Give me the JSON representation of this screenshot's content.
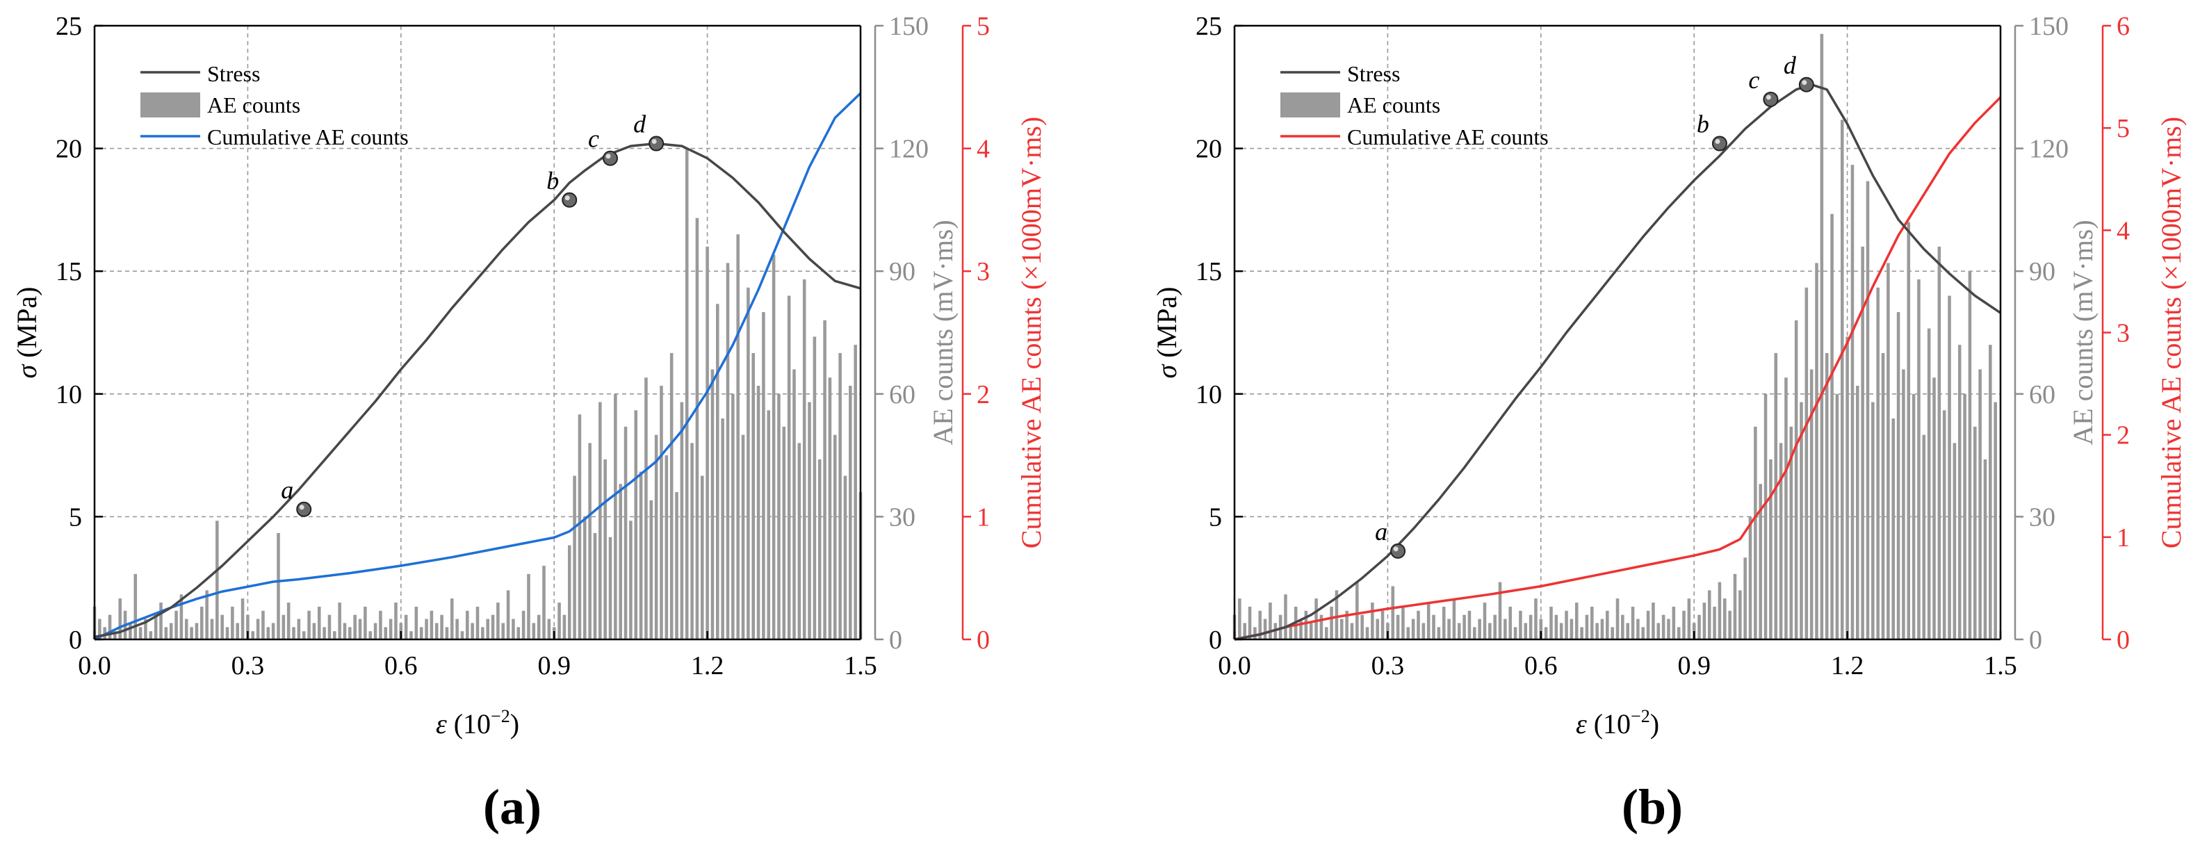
{
  "colors": {
    "stress": "#474747",
    "ae_bar": "#9a9a9a",
    "ae_axis": "#8c8c8c",
    "cum_axis": "#ee3333",
    "grid": "#9a9a9a",
    "axis": "#000000"
  },
  "chart_data": [
    {
      "panel_label": "(a)",
      "type": "line+bar",
      "xlabel_prefix": "ε",
      "xlabel_suffix": " (10",
      "xlabel_exp": "−2",
      "xlabel_close": ")",
      "ylabel_symbol": "σ",
      "ylabel_unit": " (MPa)",
      "y2label": "AE counts (mV·ms)",
      "y3label": "Cumulative AE counts (×1000mV·ms)",
      "xlim": [
        0,
        1.5
      ],
      "ylim": [
        0,
        25
      ],
      "y2lim": [
        0,
        150
      ],
      "y3lim": [
        0,
        5
      ],
      "xticks": [
        "0.0",
        "0.3",
        "0.6",
        "0.9",
        "1.2",
        "1.5"
      ],
      "yticks": [
        "0",
        "5",
        "10",
        "15",
        "20",
        "25"
      ],
      "y2ticks": [
        "0",
        "30",
        "60",
        "90",
        "120",
        "150"
      ],
      "y3ticks": [
        "0",
        "1",
        "2",
        "3",
        "4",
        "5"
      ],
      "legend": [
        "Stress",
        "AE counts",
        "Cumulative AE counts"
      ],
      "cum_color": "#1f6fd6",
      "stress": {
        "x": [
          0,
          0.05,
          0.1,
          0.15,
          0.2,
          0.25,
          0.3,
          0.35,
          0.4,
          0.45,
          0.5,
          0.55,
          0.6,
          0.65,
          0.7,
          0.75,
          0.8,
          0.85,
          0.9,
          0.93,
          0.96,
          1.0,
          1.05,
          1.1,
          1.15,
          1.2,
          1.25,
          1.3,
          1.35,
          1.4,
          1.45,
          1.5
        ],
        "y": [
          0.1,
          0.3,
          0.7,
          1.3,
          2.1,
          3.0,
          4.0,
          5.0,
          6.1,
          7.3,
          8.5,
          9.7,
          11.0,
          12.2,
          13.5,
          14.7,
          15.9,
          17.0,
          17.9,
          18.6,
          19.1,
          19.7,
          20.1,
          20.2,
          20.1,
          19.6,
          18.8,
          17.8,
          16.6,
          15.5,
          14.6,
          14.3
        ]
      },
      "cumulative": {
        "x": [
          0,
          0.05,
          0.1,
          0.15,
          0.2,
          0.25,
          0.3,
          0.35,
          0.4,
          0.5,
          0.6,
          0.7,
          0.8,
          0.9,
          0.93,
          0.96,
          1.0,
          1.05,
          1.1,
          1.15,
          1.2,
          1.25,
          1.3,
          1.35,
          1.4,
          1.45,
          1.5
        ],
        "y": [
          0,
          0.1,
          0.18,
          0.26,
          0.33,
          0.39,
          0.43,
          0.47,
          0.49,
          0.54,
          0.6,
          0.67,
          0.75,
          0.83,
          0.88,
          0.98,
          1.12,
          1.28,
          1.45,
          1.7,
          2.02,
          2.4,
          2.85,
          3.35,
          3.85,
          4.25,
          4.45
        ]
      },
      "points": [
        {
          "label": "a",
          "x": 0.41,
          "y": 5.3
        },
        {
          "label": "b",
          "x": 0.93,
          "y": 17.9
        },
        {
          "label": "c",
          "x": 1.01,
          "y": 19.6
        },
        {
          "label": "d",
          "x": 1.1,
          "y": 20.2
        }
      ],
      "ae_counts": {
        "x_start": 0,
        "x_step": 0.01,
        "values": [
          8,
          5,
          3,
          6,
          2,
          10,
          7,
          4,
          16,
          3,
          5,
          2,
          6,
          9,
          3,
          4,
          7,
          11,
          5,
          3,
          4,
          8,
          12,
          5,
          29,
          6,
          3,
          8,
          4,
          10,
          6,
          2,
          5,
          7,
          3,
          4,
          26,
          6,
          9,
          3,
          5,
          2,
          7,
          4,
          8,
          3,
          6,
          2,
          9,
          4,
          3,
          6,
          5,
          8,
          2,
          4,
          7,
          3,
          5,
          9,
          4,
          6,
          2,
          8,
          3,
          5,
          7,
          4,
          6,
          3,
          10,
          5,
          2,
          7,
          4,
          8,
          3,
          5,
          6,
          9,
          4,
          12,
          5,
          3,
          7,
          16,
          4,
          6,
          18,
          5,
          3,
          9,
          6,
          23,
          40,
          55,
          30,
          48,
          26,
          58,
          44,
          25,
          60,
          38,
          52,
          29,
          56,
          41,
          64,
          34,
          50,
          62,
          45,
          70,
          36,
          58,
          120,
          48,
          103,
          40,
          96,
          66,
          82,
          54,
          92,
          60,
          99,
          50,
          86,
          70,
          62,
          80,
          56,
          94,
          60,
          52,
          84,
          66,
          48,
          88,
          58,
          74,
          44,
          78,
          64,
          50,
          70,
          40,
          62,
          72,
          36
        ]
      }
    },
    {
      "panel_label": "(b)",
      "type": "line+bar",
      "xlabel_prefix": "ε",
      "xlabel_suffix": " (10",
      "xlabel_exp": "−2",
      "xlabel_close": ")",
      "ylabel_symbol": "σ",
      "ylabel_unit": " (MPa)",
      "y2label": "AE counts (mV·ms)",
      "y3label": "Cumulative AE counts (×1000mV·ms)",
      "xlim": [
        0,
        1.5
      ],
      "ylim": [
        0,
        25
      ],
      "y2lim": [
        0,
        150
      ],
      "y3lim": [
        0,
        6
      ],
      "xticks": [
        "0.0",
        "0.3",
        "0.6",
        "0.9",
        "1.2",
        "1.5"
      ],
      "yticks": [
        "0",
        "5",
        "10",
        "15",
        "20",
        "25"
      ],
      "y2ticks": [
        "0",
        "30",
        "60",
        "90",
        "120",
        "150"
      ],
      "y3ticks": [
        "0",
        "1",
        "2",
        "3",
        "4",
        "5",
        "6"
      ],
      "legend": [
        "Stress",
        "AE counts",
        "Cumulative AE counts"
      ],
      "cum_color": "#ee3333",
      "stress": {
        "x": [
          0,
          0.05,
          0.1,
          0.15,
          0.2,
          0.25,
          0.3,
          0.35,
          0.4,
          0.45,
          0.5,
          0.55,
          0.6,
          0.65,
          0.7,
          0.75,
          0.8,
          0.85,
          0.9,
          0.95,
          1.0,
          1.05,
          1.1,
          1.13,
          1.16,
          1.2,
          1.25,
          1.3,
          1.35,
          1.4,
          1.45,
          1.5
        ],
        "y": [
          0,
          0.2,
          0.5,
          1.0,
          1.7,
          2.5,
          3.4,
          4.5,
          5.7,
          7.0,
          8.4,
          9.8,
          11.1,
          12.5,
          13.8,
          15.1,
          16.4,
          17.6,
          18.7,
          19.7,
          20.8,
          21.7,
          22.4,
          22.6,
          22.4,
          21.0,
          18.9,
          17.1,
          15.9,
          14.9,
          14.0,
          13.3
        ]
      },
      "cumulative": {
        "x": [
          0,
          0.05,
          0.1,
          0.2,
          0.3,
          0.4,
          0.5,
          0.6,
          0.7,
          0.8,
          0.9,
          0.95,
          0.99,
          1.02,
          1.05,
          1.08,
          1.1,
          1.15,
          1.2,
          1.25,
          1.3,
          1.35,
          1.4,
          1.45,
          1.5
        ],
        "y": [
          0,
          0.05,
          0.12,
          0.22,
          0.3,
          0.37,
          0.44,
          0.52,
          0.62,
          0.72,
          0.82,
          0.88,
          0.98,
          1.2,
          1.4,
          1.65,
          1.9,
          2.4,
          2.9,
          3.45,
          3.95,
          4.35,
          4.75,
          5.05,
          5.3
        ]
      },
      "points": [
        {
          "label": "a",
          "x": 0.32,
          "y": 3.6
        },
        {
          "label": "b",
          "x": 0.95,
          "y": 20.2
        },
        {
          "label": "c",
          "x": 1.05,
          "y": 22.0
        },
        {
          "label": "d",
          "x": 1.12,
          "y": 22.6
        }
      ],
      "ae_counts": {
        "x_start": 0,
        "x_step": 0.01,
        "values": [
          6,
          10,
          4,
          8,
          3,
          7,
          5,
          9,
          4,
          6,
          11,
          3,
          8,
          5,
          7,
          4,
          10,
          6,
          3,
          8,
          12,
          5,
          7,
          4,
          14,
          6,
          3,
          9,
          5,
          7,
          4,
          13,
          6,
          8,
          3,
          5,
          7,
          4,
          9,
          6,
          3,
          8,
          5,
          10,
          4,
          6,
          7,
          3,
          5,
          9,
          4,
          6,
          14,
          5,
          8,
          3,
          7,
          4,
          6,
          10,
          5,
          3,
          8,
          6,
          4,
          7,
          5,
          9,
          3,
          6,
          8,
          4,
          5,
          7,
          3,
          10,
          6,
          4,
          8,
          5,
          3,
          7,
          9,
          4,
          6,
          5,
          8,
          3,
          7,
          10,
          4,
          6,
          9,
          12,
          8,
          14,
          10,
          7,
          16,
          12,
          20,
          30,
          52,
          38,
          60,
          44,
          70,
          48,
          64,
          52,
          78,
          58,
          86,
          66,
          92,
          148,
          70,
          104,
          60,
          127,
          74,
          116,
          62,
          96,
          112,
          58,
          86,
          70,
          92,
          54,
          80,
          66,
          102,
          60,
          88,
          50,
          76,
          64,
          96,
          56,
          84,
          48,
          72,
          60,
          90,
          52,
          66,
          44,
          72,
          58
        ]
      }
    }
  ]
}
